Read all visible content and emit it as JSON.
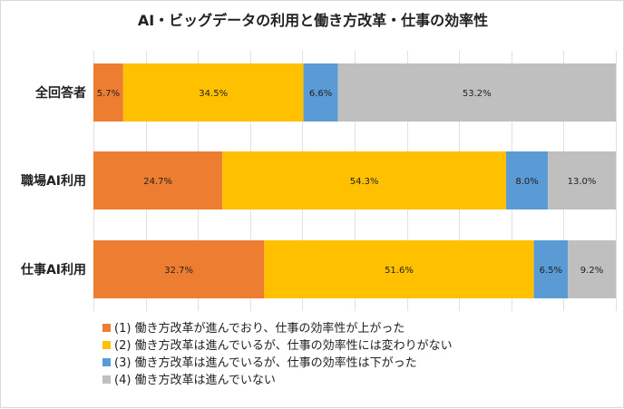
{
  "chart_data": {
    "type": "bar",
    "orientation": "horizontal",
    "stacked": true,
    "percent_stacked": true,
    "title": "AI・ビッグデータの利用と働き方改革・仕事の効率性",
    "categories": [
      "全回答者",
      "職場AI利用",
      "仕事AI利用"
    ],
    "series": [
      {
        "name": "(1) 働き方改革が進んでおり、仕事の効率性が上がった",
        "color": "#ED7D31",
        "values": [
          5.7,
          24.7,
          32.7
        ],
        "labels": [
          "5.7%",
          "24.7%",
          "32.7%"
        ]
      },
      {
        "name": "(2) 働き方改革は進んでいるが、仕事の効率性には変わりがない",
        "color": "#FFC000",
        "values": [
          34.5,
          54.3,
          51.6
        ],
        "labels": [
          "34.5%",
          "54.3%",
          "51.6%"
        ]
      },
      {
        "name": "(3) 働き方改革は進んでいるが、仕事の効率性は下がった",
        "color": "#5B9BD5",
        "values": [
          6.6,
          8.0,
          6.5
        ],
        "labels": [
          "6.6%",
          "8.0%",
          "6.5%"
        ]
      },
      {
        "name": "(4) 働き方改革は進んでいない",
        "color": "#BFBFBF",
        "values": [
          53.2,
          13.0,
          9.2
        ],
        "labels": [
          "53.2%",
          "13.0%",
          "9.2%"
        ]
      }
    ],
    "xlim": [
      0,
      100
    ],
    "grid": true,
    "legend_position": "bottom-left"
  }
}
